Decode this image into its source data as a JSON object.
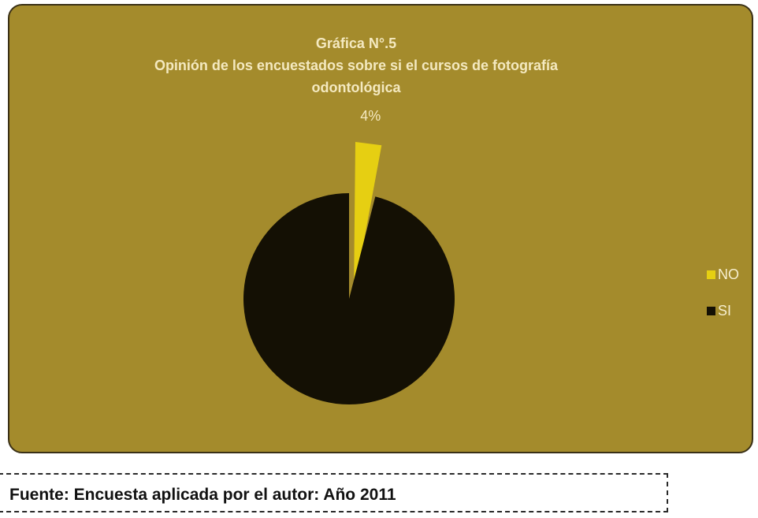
{
  "chart_data": {
    "type": "pie",
    "title_lines": [
      "Gráfica N°.5",
      "Opinión de los encuestados sobre si el cursos de fotografía",
      "odontológica"
    ],
    "slices": [
      {
        "label": "NO",
        "value": 4,
        "color": "#e6cf12",
        "data_label": "4%",
        "exploded": true
      },
      {
        "label": "SI",
        "value": 96,
        "color": "#141004",
        "data_label": ""
      }
    ],
    "legend_position": "right",
    "background_color": "#a48b2c"
  },
  "source": "Fuente: Encuesta aplicada por el autor: Año 2011"
}
